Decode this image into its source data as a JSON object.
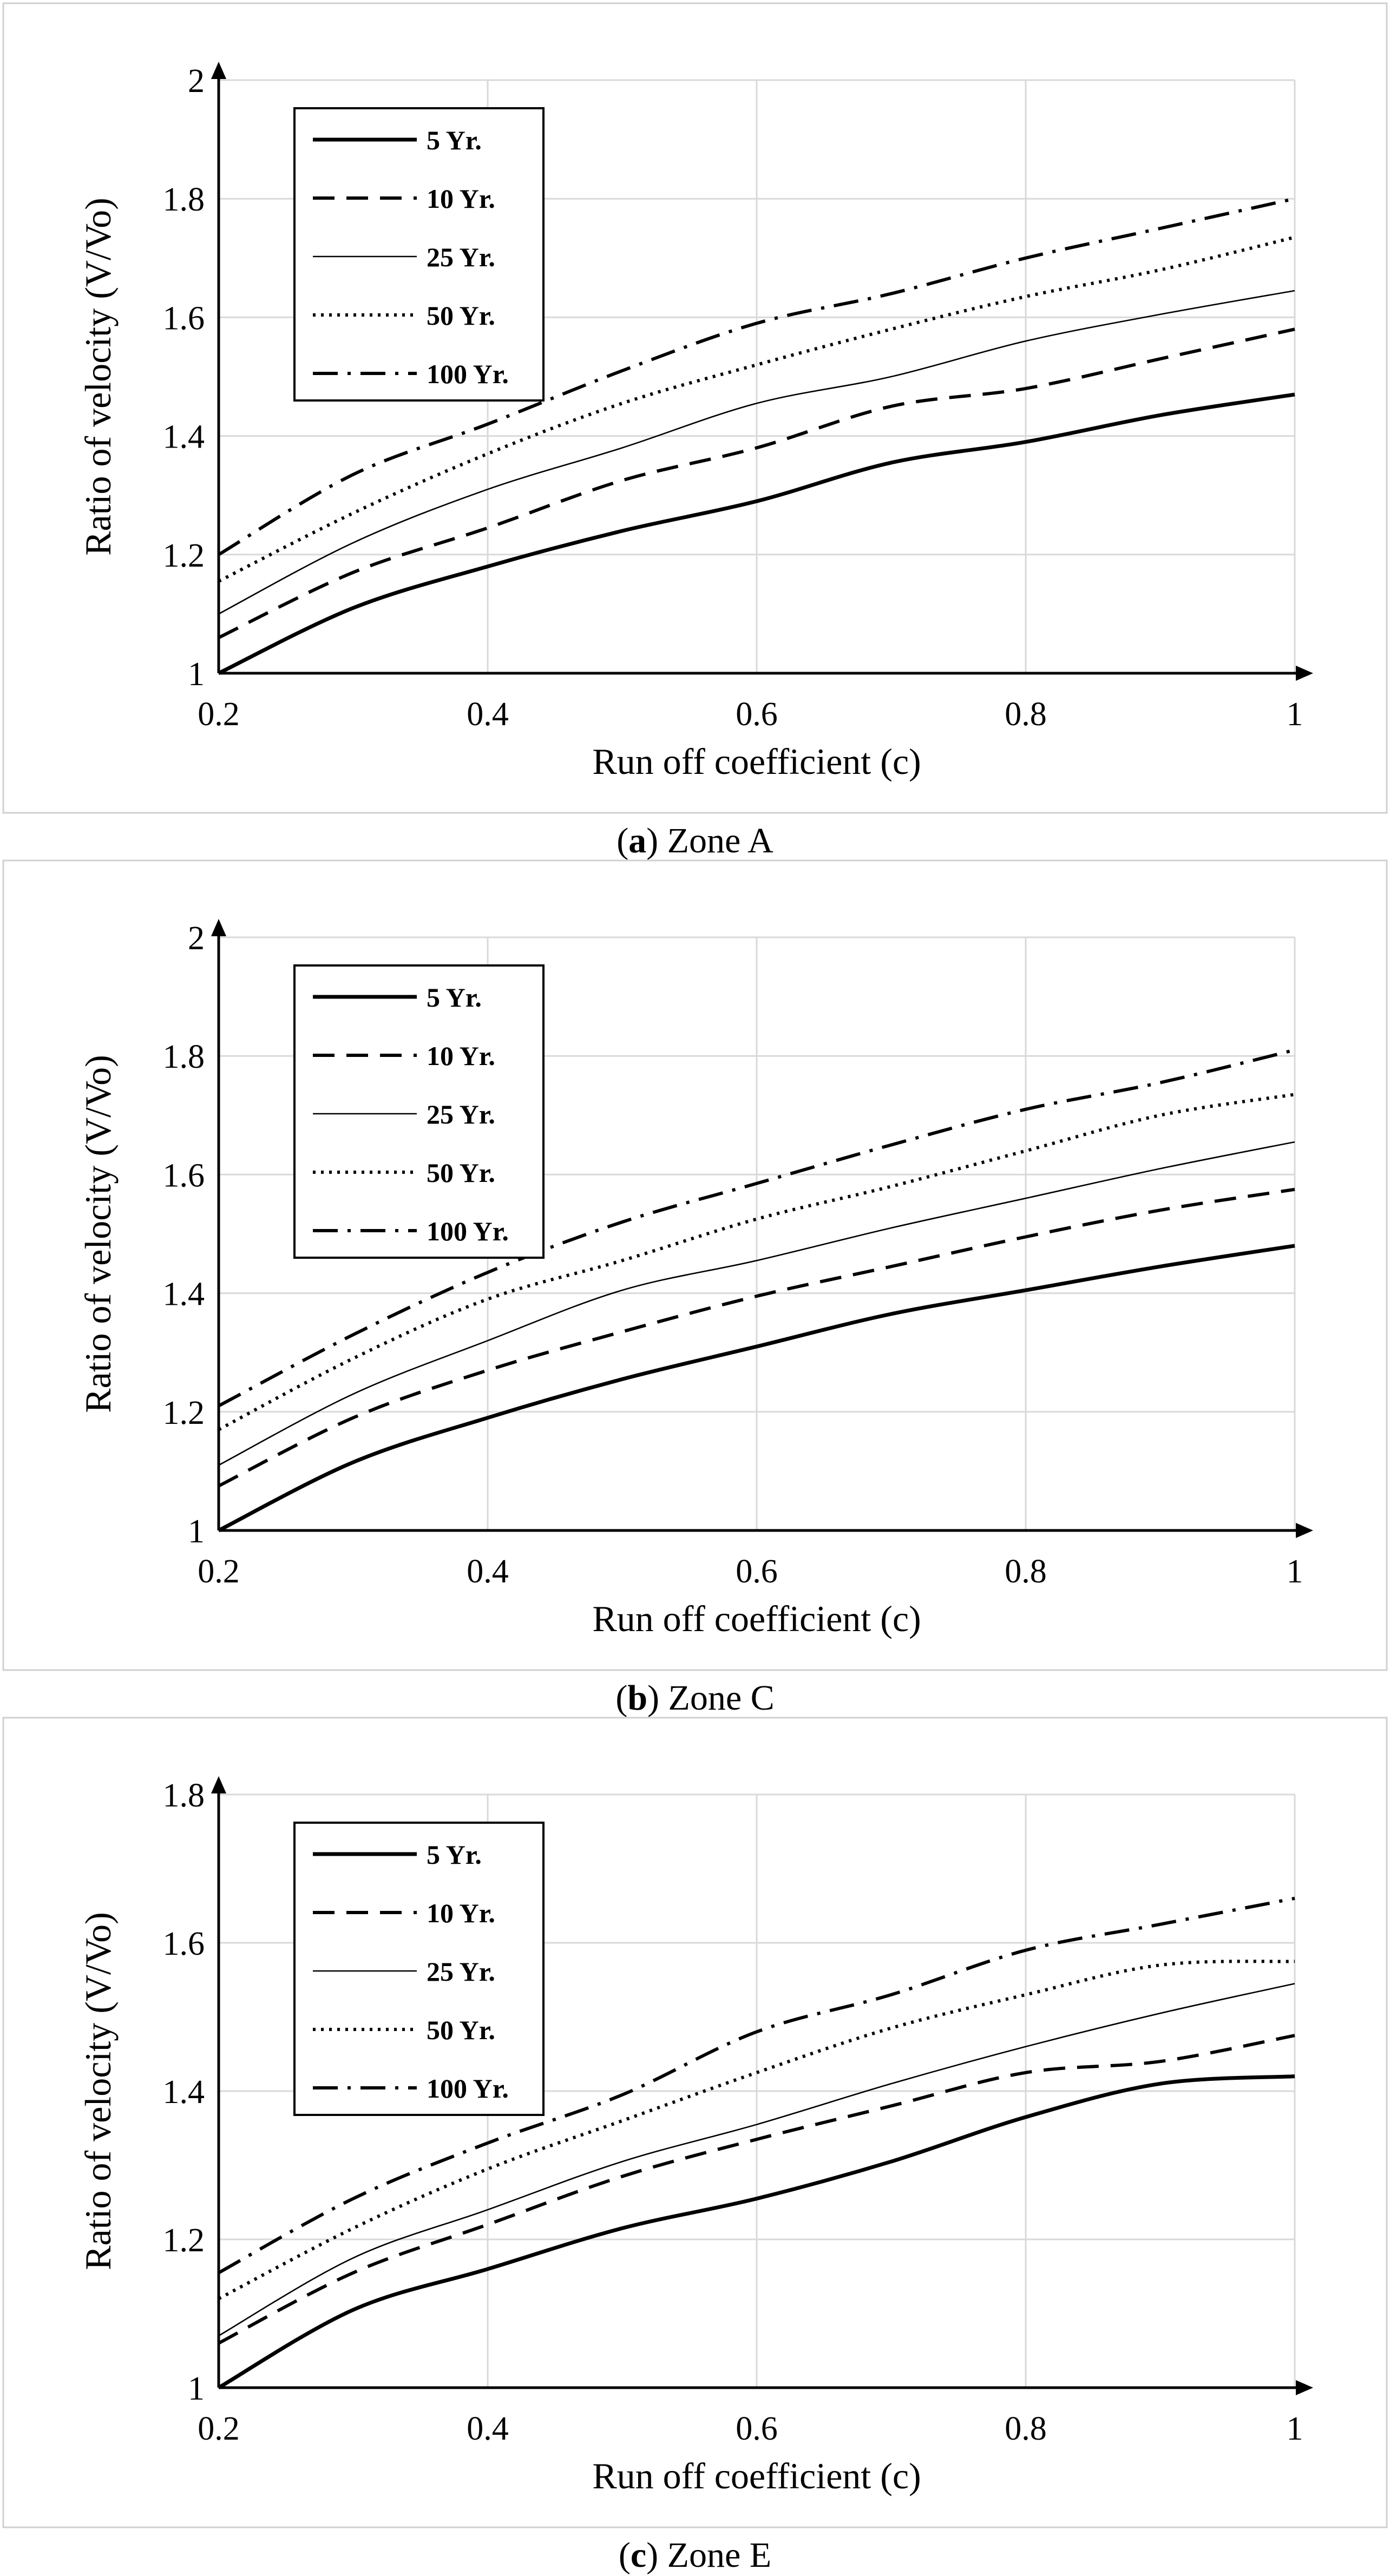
{
  "chart_data": [
    {
      "type": "line",
      "caption_letter": "a",
      "caption_text": "Zone A",
      "xlabel": "Run off coefficient  (c)",
      "ylabel": "Ratio of velocity (V/Vo)",
      "xlim": [
        0.2,
        1
      ],
      "ylim": [
        1,
        2
      ],
      "xticks": [
        "0.2",
        "0.4",
        "0.6",
        "0.8",
        "1"
      ],
      "yticks": [
        "1",
        "1.2",
        "1.4",
        "1.6",
        "1.8",
        "2"
      ],
      "x": [
        0.2,
        0.3,
        0.4,
        0.5,
        0.6,
        0.7,
        0.8,
        0.9,
        1.0
      ],
      "series": [
        {
          "name": "5 Yr.",
          "values": [
            1.0,
            1.11,
            1.18,
            1.24,
            1.29,
            1.355,
            1.39,
            1.435,
            1.47
          ]
        },
        {
          "name": "10 Yr.",
          "values": [
            1.06,
            1.17,
            1.245,
            1.325,
            1.38,
            1.45,
            1.48,
            1.53,
            1.58
          ]
        },
        {
          "name": "25 Yr.",
          "values": [
            1.1,
            1.22,
            1.31,
            1.38,
            1.455,
            1.5,
            1.56,
            1.605,
            1.645
          ]
        },
        {
          "name": "50 Yr.",
          "values": [
            1.155,
            1.27,
            1.37,
            1.455,
            1.52,
            1.58,
            1.635,
            1.68,
            1.735
          ]
        },
        {
          "name": "100 Yr.",
          "values": [
            1.2,
            1.335,
            1.42,
            1.51,
            1.59,
            1.64,
            1.7,
            1.75,
            1.8
          ]
        }
      ]
    },
    {
      "type": "line",
      "caption_letter": "b",
      "caption_text": "Zone C",
      "xlabel": "Run off coefficient  (c)",
      "ylabel": "Ratio of  velocity (V/Vo)",
      "xlim": [
        0.2,
        1
      ],
      "ylim": [
        1,
        2
      ],
      "xticks": [
        "0.2",
        "0.4",
        "0.6",
        "0.8",
        "1"
      ],
      "yticks": [
        "1",
        "1.2",
        "1.4",
        "1.6",
        "1.8",
        "2"
      ],
      "x": [
        0.2,
        0.3,
        0.4,
        0.5,
        0.6,
        0.7,
        0.8,
        0.9,
        1.0
      ],
      "series": [
        {
          "name": "5 Yr.",
          "values": [
            1.0,
            1.115,
            1.19,
            1.255,
            1.31,
            1.365,
            1.405,
            1.445,
            1.48
          ]
        },
        {
          "name": "10 Yr.",
          "values": [
            1.075,
            1.19,
            1.27,
            1.335,
            1.395,
            1.445,
            1.495,
            1.54,
            1.575
          ]
        },
        {
          "name": "25 Yr.",
          "values": [
            1.11,
            1.23,
            1.32,
            1.405,
            1.455,
            1.51,
            1.56,
            1.61,
            1.655
          ]
        },
        {
          "name": "50 Yr.",
          "values": [
            1.17,
            1.29,
            1.39,
            1.455,
            1.525,
            1.58,
            1.64,
            1.7,
            1.735
          ]
        },
        {
          "name": "100 Yr.",
          "values": [
            1.21,
            1.33,
            1.435,
            1.52,
            1.585,
            1.65,
            1.71,
            1.755,
            1.81
          ]
        }
      ]
    },
    {
      "type": "line",
      "caption_letter": "c",
      "caption_text": "Zone E",
      "xlabel": "Run off coefficient  (c)",
      "ylabel": "Ratio of  velocity (V/Vo)",
      "xlim": [
        0.2,
        1
      ],
      "ylim": [
        1,
        1.8
      ],
      "xticks": [
        "0.2",
        "0.4",
        "0.6",
        "0.8",
        "1"
      ],
      "yticks": [
        "1",
        "1.2",
        "1.4",
        "1.6",
        "1.8"
      ],
      "x": [
        0.2,
        0.3,
        0.4,
        0.5,
        0.6,
        0.7,
        0.8,
        0.9,
        1.0
      ],
      "series": [
        {
          "name": "5 Yr.",
          "values": [
            1.0,
            1.105,
            1.16,
            1.215,
            1.255,
            1.305,
            1.365,
            1.41,
            1.42
          ]
        },
        {
          "name": "10 Yr.",
          "values": [
            1.06,
            1.155,
            1.22,
            1.285,
            1.335,
            1.38,
            1.425,
            1.44,
            1.475
          ]
        },
        {
          "name": "25 Yr.",
          "values": [
            1.07,
            1.175,
            1.24,
            1.305,
            1.355,
            1.41,
            1.46,
            1.505,
            1.545
          ]
        },
        {
          "name": "50 Yr.",
          "values": [
            1.12,
            1.215,
            1.295,
            1.36,
            1.425,
            1.485,
            1.53,
            1.57,
            1.575
          ]
        },
        {
          "name": "100 Yr.",
          "values": [
            1.155,
            1.255,
            1.33,
            1.395,
            1.48,
            1.53,
            1.59,
            1.625,
            1.66
          ]
        }
      ]
    }
  ]
}
